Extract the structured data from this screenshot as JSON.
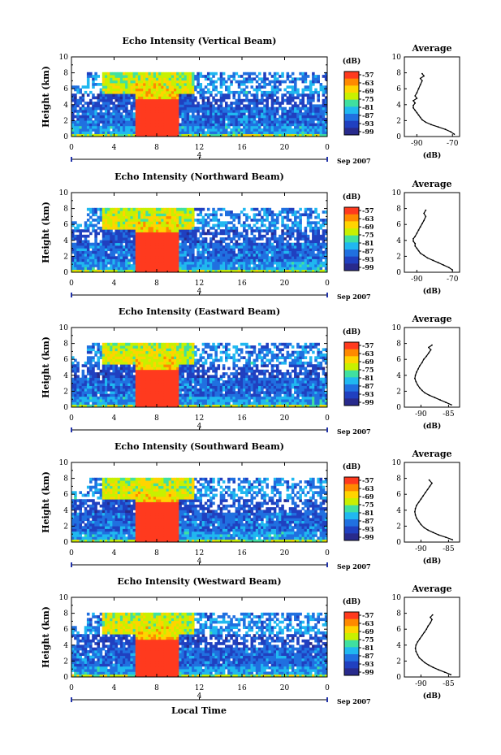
{
  "figure": {
    "xlabel": "Local Time",
    "date_label": "4",
    "month_label": "Sep 2007",
    "colorbar_unit": "(dB)",
    "colorbar_ticks": [
      "-57",
      "-63",
      "-69",
      "-75",
      "-81",
      "-87",
      "-93",
      "-99"
    ],
    "colorbar_colors": [
      "#ff3a1e",
      "#ff8a00",
      "#ffd400",
      "#c8f000",
      "#40e0a0",
      "#20b8f0",
      "#2070e0",
      "#2040c0",
      "#282a8c"
    ],
    "no_echo_color": "#ffffff",
    "avg_title": "Average",
    "avg_xlabel": "(dB)"
  },
  "chart_data": [
    {
      "type": "heatmap",
      "title": "Echo Intensity (Vertical Beam)",
      "ylabel": "Height (km)",
      "xlabel": "Local Time",
      "x_ticks": [
        "0",
        "4",
        "8",
        "12",
        "16",
        "20",
        "0"
      ],
      "y_ticks": [
        "0",
        "2",
        "4",
        "6",
        "8",
        "10"
      ],
      "xlim": [
        0,
        24
      ],
      "ylim": [
        0,
        10
      ],
      "rain_period_hours": [
        6,
        10
      ],
      "rain_top_km": 4.8,
      "echo_top_km": 8.0,
      "average_profile": {
        "type": "line",
        "x_ticks": [
          "-90",
          "-70"
        ],
        "y_ticks": [
          "0",
          "2",
          "4",
          "6",
          "8",
          "10"
        ],
        "xlim": [
          -97,
          -66
        ],
        "ylim": [
          0,
          10
        ],
        "x": [
          -69,
          -71,
          -74,
          -78,
          -82,
          -85,
          -87,
          -88,
          -89,
          -90,
          -91,
          -92,
          -92,
          -91,
          -92,
          -90,
          -91,
          -90,
          -89,
          -88,
          -87,
          -88,
          -86,
          -87
        ],
        "y": [
          0.3,
          0.6,
          0.9,
          1.2,
          1.5,
          1.8,
          2.1,
          2.4,
          2.7,
          3.0,
          3.3,
          3.6,
          3.9,
          4.2,
          4.5,
          4.8,
          5.1,
          5.5,
          6.0,
          6.5,
          7.0,
          7.3,
          7.6,
          7.9
        ]
      }
    },
    {
      "type": "heatmap",
      "title": "Echo Intensity (Northward Beam)",
      "ylabel": "Height (km)",
      "xlabel": "Local Time",
      "x_ticks": [
        "0",
        "4",
        "8",
        "12",
        "16",
        "20",
        "0"
      ],
      "y_ticks": [
        "0",
        "2",
        "4",
        "6",
        "8",
        "10"
      ],
      "xlim": [
        0,
        24
      ],
      "ylim": [
        0,
        10
      ],
      "rain_period_hours": [
        6,
        10
      ],
      "rain_top_km": 4.9,
      "echo_top_km": 8.0,
      "average_profile": {
        "type": "line",
        "x_ticks": [
          "-90",
          "-70"
        ],
        "y_ticks": [
          "0",
          "2",
          "4",
          "6",
          "8",
          "10"
        ],
        "xlim": [
          -97,
          -66
        ],
        "ylim": [
          0,
          10
        ],
        "x": [
          -70,
          -72,
          -75,
          -78,
          -81,
          -84,
          -86,
          -88,
          -89,
          -90,
          -91,
          -91,
          -92,
          -92,
          -91,
          -90,
          -89,
          -88,
          -87,
          -86,
          -85,
          -86,
          -85
        ],
        "y": [
          0.3,
          0.6,
          0.9,
          1.2,
          1.5,
          1.8,
          2.1,
          2.4,
          2.7,
          3.0,
          3.3,
          3.6,
          3.9,
          4.2,
          4.5,
          4.9,
          5.3,
          5.7,
          6.1,
          6.5,
          7.0,
          7.4,
          7.8
        ]
      }
    },
    {
      "type": "heatmap",
      "title": "Echo Intensity (Eastward Beam)",
      "ylabel": "Height (km)",
      "xlabel": "Local Time",
      "x_ticks": [
        "0",
        "4",
        "8",
        "12",
        "16",
        "20",
        "0"
      ],
      "y_ticks": [
        "0",
        "2",
        "4",
        "6",
        "8",
        "10"
      ],
      "xlim": [
        0,
        24
      ],
      "ylim": [
        0,
        10
      ],
      "rain_period_hours": [
        6,
        10
      ],
      "rain_top_km": 4.8,
      "echo_top_km": 8.0,
      "average_profile": {
        "type": "line",
        "x_ticks": [
          "-90",
          "-85"
        ],
        "y_ticks": [
          "0",
          "2",
          "4",
          "6",
          "8",
          "10"
        ],
        "xlim": [
          -93,
          -83
        ],
        "ylim": [
          0,
          10
        ],
        "x": [
          -84.5,
          -85.5,
          -86.5,
          -87.5,
          -88.5,
          -89.3,
          -89.8,
          -90.2,
          -90.6,
          -90.9,
          -91.1,
          -91.0,
          -90.8,
          -90.5,
          -90.2,
          -89.8,
          -89.5,
          -89.0,
          -88.6,
          -88.2,
          -88.6,
          -88.0
        ],
        "y": [
          0.3,
          0.6,
          0.9,
          1.2,
          1.5,
          1.8,
          2.1,
          2.4,
          2.8,
          3.2,
          3.6,
          4.0,
          4.4,
          4.8,
          5.2,
          5.6,
          6.0,
          6.4,
          6.8,
          7.2,
          7.5,
          7.8
        ]
      }
    },
    {
      "type": "heatmap",
      "title": "Echo Intensity (Southward Beam)",
      "ylabel": "Height (km)",
      "xlabel": "Local Time",
      "x_ticks": [
        "0",
        "4",
        "8",
        "12",
        "16",
        "20",
        "0"
      ],
      "y_ticks": [
        "0",
        "2",
        "4",
        "6",
        "8",
        "10"
      ],
      "xlim": [
        0,
        24
      ],
      "ylim": [
        0,
        10
      ],
      "rain_period_hours": [
        6,
        10
      ],
      "rain_top_km": 4.9,
      "echo_top_km": 8.0,
      "average_profile": {
        "type": "line",
        "x_ticks": [
          "-90",
          "-85"
        ],
        "y_ticks": [
          "0",
          "2",
          "4",
          "6",
          "8",
          "10"
        ],
        "xlim": [
          -93,
          -83
        ],
        "ylim": [
          0,
          10
        ],
        "x": [
          -84.3,
          -85.5,
          -86.8,
          -87.8,
          -88.7,
          -89.4,
          -90.0,
          -90.4,
          -90.8,
          -91.0,
          -91.1,
          -91.0,
          -90.8,
          -90.4,
          -90.0,
          -89.6,
          -89.2,
          -88.8,
          -88.4,
          -88.0,
          -88.5
        ],
        "y": [
          0.3,
          0.6,
          0.9,
          1.2,
          1.5,
          1.8,
          2.2,
          2.6,
          3.0,
          3.4,
          3.8,
          4.2,
          4.6,
          5.0,
          5.4,
          5.8,
          6.2,
          6.6,
          7.0,
          7.4,
          7.8
        ]
      }
    },
    {
      "type": "heatmap",
      "title": "Echo Intensity (Westward Beam)",
      "ylabel": "Height (km)",
      "xlabel": "Local Time",
      "x_ticks": [
        "0",
        "4",
        "8",
        "12",
        "16",
        "20",
        "0"
      ],
      "y_ticks": [
        "0",
        "2",
        "4",
        "6",
        "8",
        "10"
      ],
      "xlim": [
        0,
        24
      ],
      "ylim": [
        0,
        10
      ],
      "rain_period_hours": [
        6,
        10
      ],
      "rain_top_km": 4.8,
      "echo_top_km": 8.0,
      "average_profile": {
        "type": "line",
        "x_ticks": [
          "-90",
          "-85"
        ],
        "y_ticks": [
          "0",
          "2",
          "4",
          "6",
          "8",
          "10"
        ],
        "xlim": [
          -93,
          -83
        ],
        "ylim": [
          0,
          10
        ],
        "x": [
          -84.6,
          -85.7,
          -86.8,
          -87.8,
          -88.6,
          -89.3,
          -89.8,
          -90.3,
          -90.6,
          -90.9,
          -91.0,
          -90.9,
          -90.6,
          -90.2,
          -89.8,
          -89.4,
          -89.0,
          -88.7,
          -88.3,
          -88.0,
          -88.3,
          -87.9
        ],
        "y": [
          0.3,
          0.6,
          0.9,
          1.2,
          1.5,
          1.8,
          2.1,
          2.4,
          2.8,
          3.2,
          3.6,
          4.0,
          4.4,
          4.8,
          5.2,
          5.6,
          6.0,
          6.4,
          6.8,
          7.2,
          7.5,
          7.8
        ]
      }
    }
  ]
}
